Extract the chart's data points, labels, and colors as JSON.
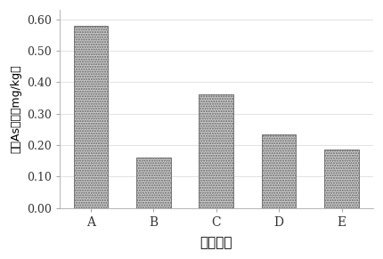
{
  "categories": [
    "A",
    "B",
    "C",
    "D",
    "E"
  ],
  "values": [
    0.58,
    0.16,
    0.36,
    0.235,
    0.185
  ],
  "bar_color": "#c8c8c8",
  "bar_edgecolor": "#666666",
  "ylim": [
    0,
    0.63
  ],
  "yticks": [
    0.0,
    0.1,
    0.2,
    0.3,
    0.4,
    0.5,
    0.6
  ],
  "ytick_labels": [
    "0.00",
    "0.10",
    "0.20",
    "0.30",
    "0.40",
    "0.50",
    "0.60"
  ],
  "xlabel": "灌水方法",
  "ylabel": "稻米As浓度（mg/kg）",
  "background_color": "#ffffff",
  "bar_width": 0.55,
  "hatch": "......"
}
